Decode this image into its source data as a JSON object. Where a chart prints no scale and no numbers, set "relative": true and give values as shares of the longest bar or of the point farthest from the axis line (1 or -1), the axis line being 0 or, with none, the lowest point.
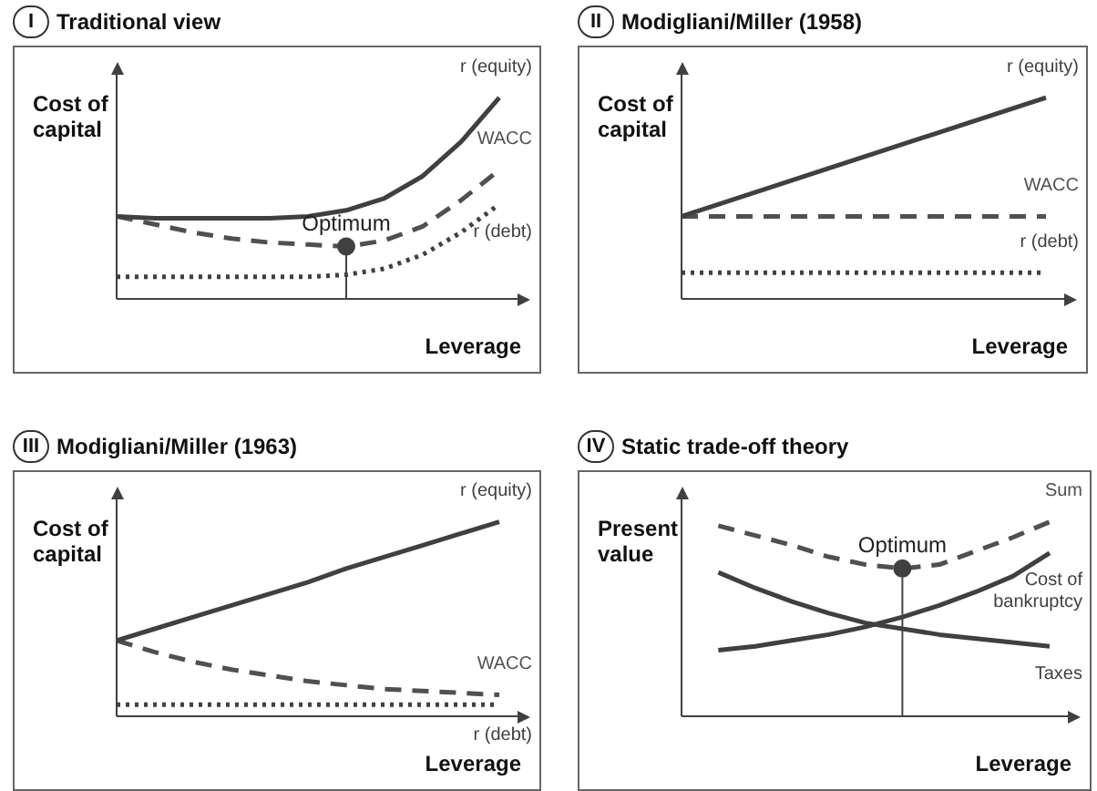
{
  "chart_data": [
    {
      "type": "line",
      "title": "Traditional view",
      "subtitle": "I",
      "ylabel": "Cost of capital",
      "xlabel": "Leverage",
      "relative": true,
      "annotations": [
        "Optimum"
      ],
      "categories": [
        null,
        null,
        null,
        null,
        null,
        null,
        null,
        null,
        null,
        null,
        null
      ],
      "series": [
        {
          "name": "r (equity)",
          "color": "#404040",
          "line_style": "solid",
          "values": [
            0.41,
            0.4,
            0.4,
            0.4,
            0.4,
            0.41,
            0.44,
            0.5,
            0.61,
            0.78,
            1.0
          ]
        },
        {
          "name": "WACC",
          "color": "#505050",
          "line_style": "dashed",
          "values": [
            0.41,
            0.37,
            0.33,
            0.3,
            0.28,
            0.27,
            0.26,
            0.29,
            0.36,
            0.49,
            0.64
          ]
        },
        {
          "name": "r (debt)",
          "color": "#404040",
          "line_style": "dotted",
          "values": [
            0.11,
            0.11,
            0.11,
            0.11,
            0.11,
            0.11,
            0.12,
            0.15,
            0.22,
            0.33,
            0.47
          ]
        }
      ]
    },
    {
      "type": "line",
      "title": "Modigliani/Miller (1958)",
      "subtitle": "II",
      "ylabel": "Cost of capital",
      "xlabel": "Leverage",
      "relative": true,
      "categories": [
        null,
        null,
        null
      ],
      "series": [
        {
          "name": "r (equity)",
          "color": "#404040",
          "line_style": "solid",
          "values": [
            0.41,
            0.705,
            1.0
          ]
        },
        {
          "name": "WACC",
          "color": "#505050",
          "line_style": "dashed",
          "values": [
            0.41,
            0.41,
            0.41
          ]
        },
        {
          "name": "r (debt)",
          "color": "#404040",
          "line_style": "dotted",
          "values": [
            0.13,
            0.13,
            0.13
          ]
        }
      ]
    },
    {
      "type": "line",
      "title": "Modigliani/Miller (1963)",
      "subtitle": "III",
      "ylabel": "Cost of capital",
      "xlabel": "Leverage",
      "relative": true,
      "categories": [
        null,
        null,
        null,
        null,
        null,
        null,
        null,
        null,
        null,
        null,
        null
      ],
      "series": [
        {
          "name": "r (equity)",
          "color": "#404040",
          "line_style": "solid",
          "values": [
            0.39,
            0.45,
            0.51,
            0.57,
            0.63,
            0.69,
            0.76,
            0.82,
            0.88,
            0.94,
            1.0
          ]
        },
        {
          "name": "WACC",
          "color": "#505050",
          "line_style": "dashed",
          "values": [
            0.39,
            0.33,
            0.28,
            0.24,
            0.21,
            0.18,
            0.16,
            0.14,
            0.13,
            0.12,
            0.11
          ]
        },
        {
          "name": "r (debt)",
          "color": "#404040",
          "line_style": "dotted",
          "values": [
            0.06,
            0.06,
            0.06,
            0.06,
            0.06,
            0.06,
            0.06,
            0.06,
            0.06,
            0.06,
            0.06
          ]
        }
      ]
    },
    {
      "type": "line",
      "title": "Static trade-off theory",
      "subtitle": "IV",
      "ylabel": "Present value",
      "xlabel": "Leverage",
      "relative": true,
      "annotations": [
        "Optimum"
      ],
      "categories": [
        null,
        null,
        null,
        null,
        null,
        null,
        null,
        null,
        null,
        null,
        null
      ],
      "series": [
        {
          "name": "Sum",
          "color": "#505050",
          "line_style": "dashed",
          "values": [
            null,
            0.98,
            0.93,
            0.88,
            0.82,
            0.78,
            0.76,
            0.78,
            0.85,
            0.92,
            1.0
          ]
        },
        {
          "name": "Cost of bankruptcy",
          "color": "#404040",
          "line_style": "solid",
          "values": [
            null,
            0.34,
            0.36,
            0.39,
            0.42,
            0.46,
            0.51,
            0.57,
            0.64,
            0.72,
            0.84
          ]
        },
        {
          "name": "Taxes",
          "color": "#404040",
          "line_style": "solid",
          "values": [
            null,
            0.74,
            0.66,
            0.59,
            0.53,
            0.48,
            0.45,
            0.42,
            0.4,
            0.38,
            0.36
          ]
        }
      ]
    }
  ]
}
